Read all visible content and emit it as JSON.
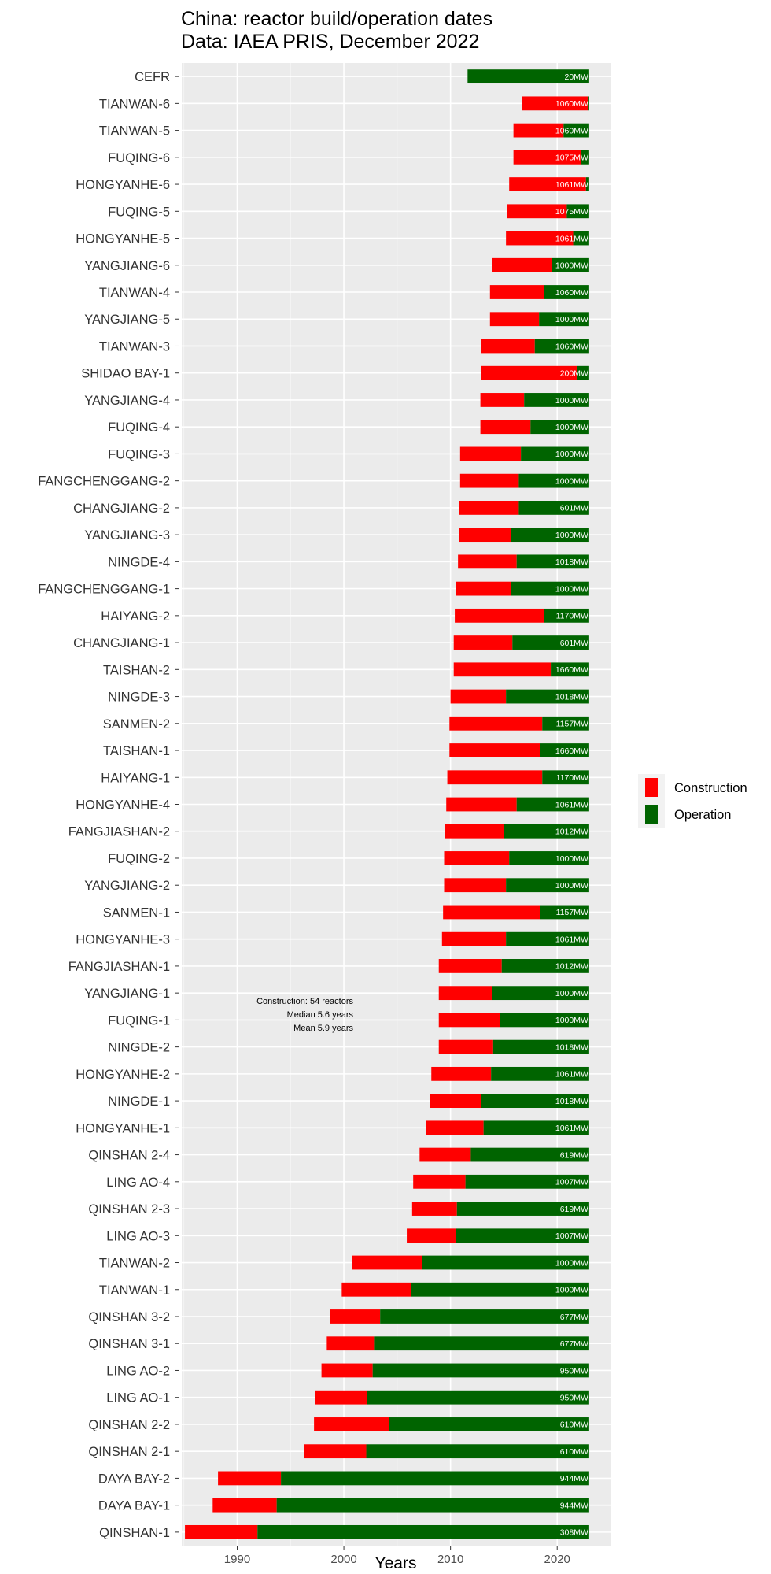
{
  "chart_data": {
    "type": "bar",
    "orientation": "horizontal-range",
    "title": "China: reactor build/operation dates",
    "subtitle": "Data: IAEA PRIS, December 2022",
    "xlabel": "Years",
    "ylabel": "",
    "xlim": [
      1984.8,
      2025.0
    ],
    "xticks": [
      1990,
      2000,
      2010,
      2020
    ],
    "grid": true,
    "legend_position": "right",
    "end_year": 2023.0,
    "series": [
      {
        "name": "Construction",
        "color": "#ff0000"
      },
      {
        "name": "Operation",
        "color": "#006400"
      }
    ],
    "annotation": [
      "Construction: 54 reactors",
      "Median 5.6 years",
      "Mean 5.9 years"
    ],
    "reactors": [
      {
        "name": "CEFR",
        "construction_start": null,
        "operation_start": 2011.6,
        "label": "20MW"
      },
      {
        "name": "TIANWAN-6",
        "construction_start": 2016.7,
        "operation_start": 2022.9,
        "label": "1060MW"
      },
      {
        "name": "TIANWAN-5",
        "construction_start": 2015.9,
        "operation_start": 2020.6,
        "label": "1060MW"
      },
      {
        "name": "FUQING-6",
        "construction_start": 2015.9,
        "operation_start": 2022.2,
        "label": "1075MW"
      },
      {
        "name": "HONGYANHE-6",
        "construction_start": 2015.5,
        "operation_start": 2022.7,
        "label": "1061MW"
      },
      {
        "name": "FUQING-5",
        "construction_start": 2015.3,
        "operation_start": 2020.9,
        "label": "1075MW"
      },
      {
        "name": "HONGYANHE-5",
        "construction_start": 2015.2,
        "operation_start": 2021.5,
        "label": "1061MW"
      },
      {
        "name": "YANGJIANG-6",
        "construction_start": 2013.9,
        "operation_start": 2019.5,
        "label": "1000MW"
      },
      {
        "name": "TIANWAN-4",
        "construction_start": 2013.7,
        "operation_start": 2018.8,
        "label": "1060MW"
      },
      {
        "name": "YANGJIANG-5",
        "construction_start": 2013.7,
        "operation_start": 2018.3,
        "label": "1000MW"
      },
      {
        "name": "TIANWAN-3",
        "construction_start": 2012.9,
        "operation_start": 2017.9,
        "label": "1060MW"
      },
      {
        "name": "SHIDAO BAY-1",
        "construction_start": 2012.9,
        "operation_start": 2021.9,
        "label": "200MW"
      },
      {
        "name": "YANGJIANG-4",
        "construction_start": 2012.8,
        "operation_start": 2016.9,
        "label": "1000MW"
      },
      {
        "name": "FUQING-4",
        "construction_start": 2012.8,
        "operation_start": 2017.5,
        "label": "1000MW"
      },
      {
        "name": "FUQING-3",
        "construction_start": 2010.9,
        "operation_start": 2016.6,
        "label": "1000MW"
      },
      {
        "name": "FANGCHENGGANG-2",
        "construction_start": 2010.9,
        "operation_start": 2016.4,
        "label": "1000MW"
      },
      {
        "name": "CHANGJIANG-2",
        "construction_start": 2010.8,
        "operation_start": 2016.4,
        "label": "601MW"
      },
      {
        "name": "YANGJIANG-3",
        "construction_start": 2010.8,
        "operation_start": 2015.7,
        "label": "1000MW"
      },
      {
        "name": "NINGDE-4",
        "construction_start": 2010.7,
        "operation_start": 2016.2,
        "label": "1018MW"
      },
      {
        "name": "FANGCHENGGANG-1",
        "construction_start": 2010.5,
        "operation_start": 2015.7,
        "label": "1000MW"
      },
      {
        "name": "HAIYANG-2",
        "construction_start": 2010.4,
        "operation_start": 2018.8,
        "label": "1170MW"
      },
      {
        "name": "CHANGJIANG-1",
        "construction_start": 2010.3,
        "operation_start": 2015.8,
        "label": "601MW"
      },
      {
        "name": "TAISHAN-2",
        "construction_start": 2010.3,
        "operation_start": 2019.4,
        "label": "1660MW"
      },
      {
        "name": "NINGDE-3",
        "construction_start": 2010.0,
        "operation_start": 2015.2,
        "label": "1018MW"
      },
      {
        "name": "SANMEN-2",
        "construction_start": 2009.9,
        "operation_start": 2018.6,
        "label": "1157MW"
      },
      {
        "name": "TAISHAN-1",
        "construction_start": 2009.9,
        "operation_start": 2018.4,
        "label": "1660MW"
      },
      {
        "name": "HAIYANG-1",
        "construction_start": 2009.7,
        "operation_start": 2018.6,
        "label": "1170MW"
      },
      {
        "name": "HONGYANHE-4",
        "construction_start": 2009.6,
        "operation_start": 2016.2,
        "label": "1061MW"
      },
      {
        "name": "FANGJIASHAN-2",
        "construction_start": 2009.5,
        "operation_start": 2015.0,
        "label": "1012MW"
      },
      {
        "name": "FUQING-2",
        "construction_start": 2009.4,
        "operation_start": 2015.5,
        "label": "1000MW"
      },
      {
        "name": "YANGJIANG-2",
        "construction_start": 2009.4,
        "operation_start": 2015.2,
        "label": "1000MW"
      },
      {
        "name": "SANMEN-1",
        "construction_start": 2009.3,
        "operation_start": 2018.4,
        "label": "1157MW"
      },
      {
        "name": "HONGYANHE-3",
        "construction_start": 2009.2,
        "operation_start": 2015.2,
        "label": "1061MW"
      },
      {
        "name": "FANGJIASHAN-1",
        "construction_start": 2008.9,
        "operation_start": 2014.8,
        "label": "1012MW"
      },
      {
        "name": "YANGJIANG-1",
        "construction_start": 2008.9,
        "operation_start": 2013.9,
        "label": "1000MW"
      },
      {
        "name": "FUQING-1",
        "construction_start": 2008.9,
        "operation_start": 2014.6,
        "label": "1000MW"
      },
      {
        "name": "NINGDE-2",
        "construction_start": 2008.9,
        "operation_start": 2014.0,
        "label": "1018MW"
      },
      {
        "name": "HONGYANHE-2",
        "construction_start": 2008.2,
        "operation_start": 2013.8,
        "label": "1061MW"
      },
      {
        "name": "NINGDE-1",
        "construction_start": 2008.1,
        "operation_start": 2012.9,
        "label": "1018MW"
      },
      {
        "name": "HONGYANHE-1",
        "construction_start": 2007.7,
        "operation_start": 2013.1,
        "label": "1061MW"
      },
      {
        "name": "QINSHAN 2-4",
        "construction_start": 2007.1,
        "operation_start": 2011.9,
        "label": "619MW"
      },
      {
        "name": "LING AO-4",
        "construction_start": 2006.5,
        "operation_start": 2011.4,
        "label": "1007MW"
      },
      {
        "name": "QINSHAN 2-3",
        "construction_start": 2006.4,
        "operation_start": 2010.6,
        "label": "619MW"
      },
      {
        "name": "LING AO-3",
        "construction_start": 2005.9,
        "operation_start": 2010.5,
        "label": "1007MW"
      },
      {
        "name": "TIANWAN-2",
        "construction_start": 2000.8,
        "operation_start": 2007.3,
        "label": "1000MW"
      },
      {
        "name": "TIANWAN-1",
        "construction_start": 1999.8,
        "operation_start": 2006.3,
        "label": "1000MW"
      },
      {
        "name": "QINSHAN 3-2",
        "construction_start": 1998.7,
        "operation_start": 2003.4,
        "label": "677MW"
      },
      {
        "name": "QINSHAN 3-1",
        "construction_start": 1998.4,
        "operation_start": 2002.9,
        "label": "677MW"
      },
      {
        "name": "LING AO-2",
        "construction_start": 1997.9,
        "operation_start": 2002.7,
        "label": "950MW"
      },
      {
        "name": "LING AO-1",
        "construction_start": 1997.3,
        "operation_start": 2002.2,
        "label": "950MW"
      },
      {
        "name": "QINSHAN 2-2",
        "construction_start": 1997.2,
        "operation_start": 2004.2,
        "label": "610MW"
      },
      {
        "name": "QINSHAN 2-1",
        "construction_start": 1996.3,
        "operation_start": 2002.1,
        "label": "610MW"
      },
      {
        "name": "DAYA BAY-2",
        "construction_start": 1988.2,
        "operation_start": 1994.1,
        "label": "944MW"
      },
      {
        "name": "DAYA BAY-1",
        "construction_start": 1987.7,
        "operation_start": 1993.7,
        "label": "944MW"
      },
      {
        "name": "QINSHAN-1",
        "construction_start": 1985.1,
        "operation_start": 1991.9,
        "label": "308MW"
      }
    ]
  }
}
